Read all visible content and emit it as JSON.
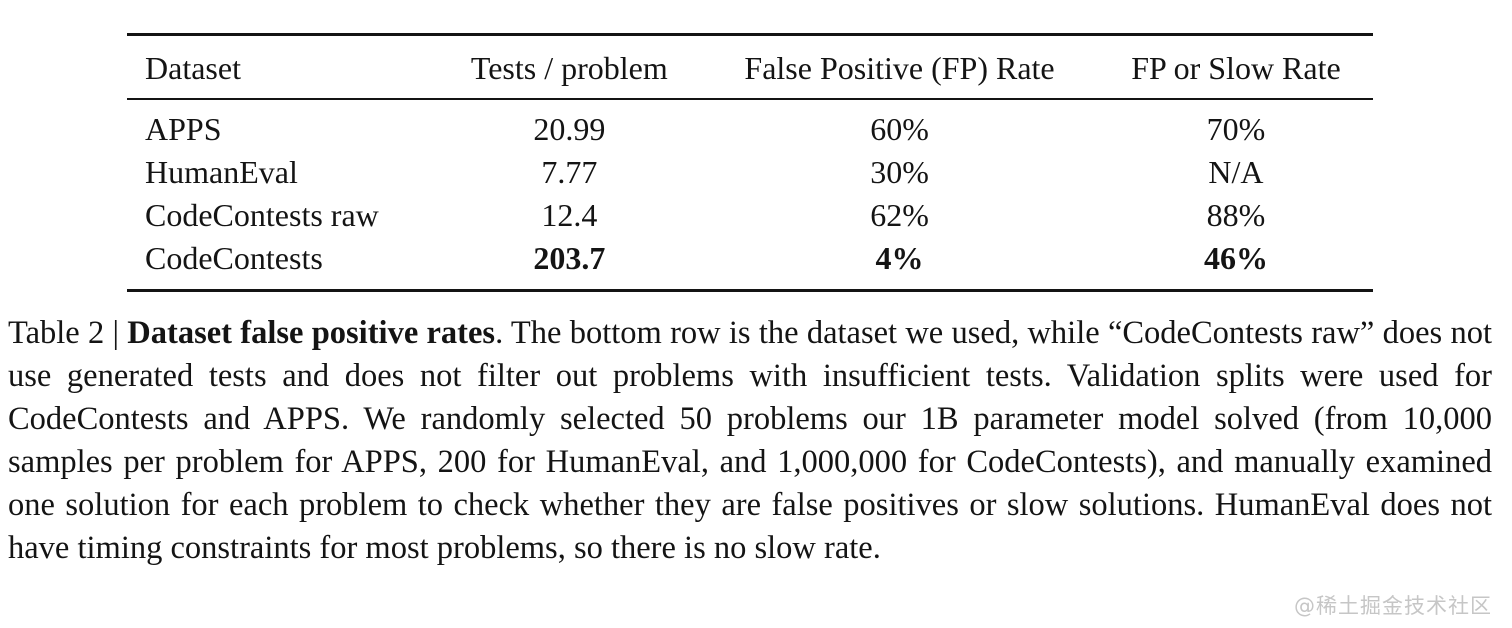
{
  "table": {
    "columns": [
      "Dataset",
      "Tests / problem",
      "False Positive (FP) Rate",
      "FP or Slow Rate"
    ],
    "rows": [
      [
        "APPS",
        "20.99",
        "60%",
        "70%"
      ],
      [
        "HumanEval",
        "7.77",
        "30%",
        "N/A"
      ],
      [
        "CodeContests raw",
        "12.4",
        "62%",
        "88%"
      ],
      [
        "CodeContests",
        "203.7",
        "4%",
        "46%"
      ]
    ],
    "bold_row_index": 3
  },
  "caption": {
    "label": "Table 2 | ",
    "title_bold": "Dataset false positive rates",
    "body": ". The bottom row is the dataset we used, while “CodeContests raw” does not use generated tests and does not filter out problems with insufficient tests. Validation splits were used for CodeContests and APPS. We randomly selected 50 problems our 1B parameter model solved (from 10,000 samples per problem for APPS, 200 for HumanEval, and 1,000,000 for CodeContests), and manually examined one solution for each problem to check whether they are false positives or slow solutions. HumanEval does not have timing constraints for most problems, so there is no slow rate."
  },
  "watermark": "@稀土掘金技术社区",
  "colors": {
    "text": "#141414",
    "rule": "#141414",
    "watermark": "#c6c6c6",
    "background": "#ffffff"
  }
}
